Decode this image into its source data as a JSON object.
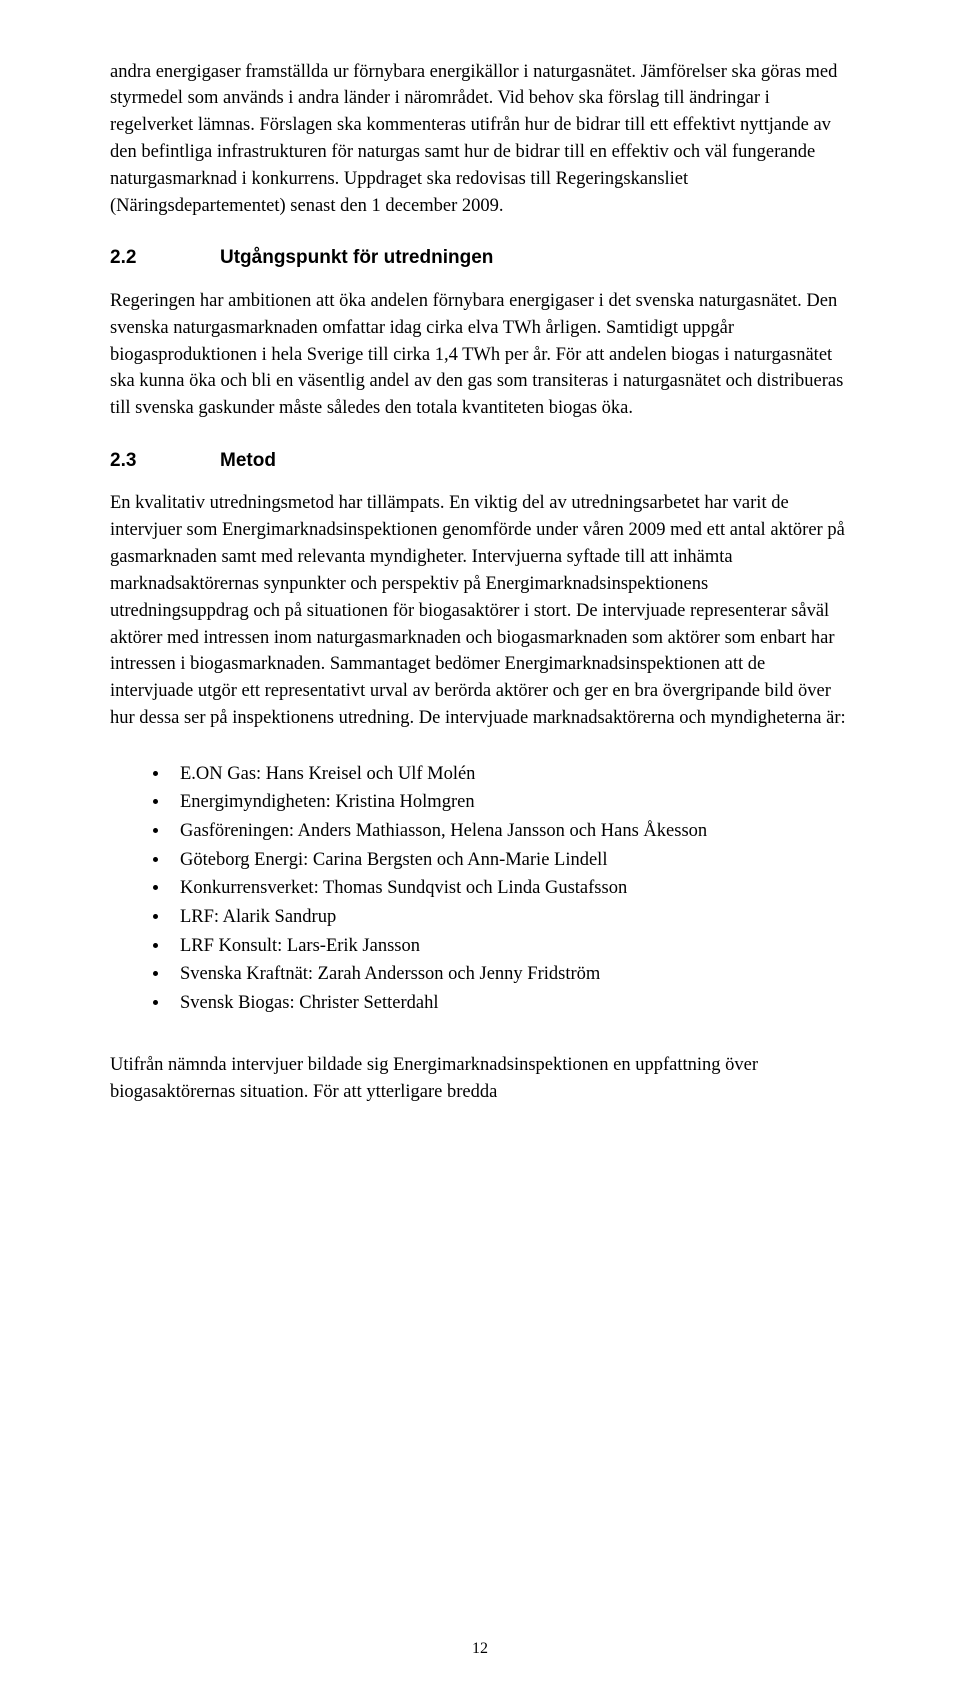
{
  "intro_paragraph": "andra energigaser framställda ur förnybara energikällor i naturgasnätet. Jämförelser ska göras med styrmedel som används i andra länder i närområdet. Vid behov ska förslag till ändringar i regelverket lämnas. Förslagen ska kommenteras utifrån hur de bidrar till ett effektivt nyttjande av den befintliga infrastrukturen för naturgas samt hur de bidrar till en effektiv och väl fungerande naturgasmarknad i konkurrens. Uppdraget ska redovisas till Regeringskansliet (Näringsdepartementet) senast den 1 december 2009.",
  "section_2_2": {
    "number": "2.2",
    "title": "Utgångspunkt för utredningen",
    "text": "Regeringen har ambitionen att öka andelen förnybara energigaser i det svenska naturgasnätet. Den svenska naturgasmarknaden omfattar idag cirka elva TWh årligen. Samtidigt uppgår biogasproduktionen i hela Sverige till cirka 1,4 TWh per år. För att andelen biogas i naturgasnätet ska kunna öka och bli en väsentlig andel av den gas som transiteras i naturgasnätet och distribueras till svenska gaskunder måste således den totala kvantiteten biogas öka."
  },
  "section_2_3": {
    "number": "2.3",
    "title": "Metod",
    "text": "En kvalitativ utredningsmetod har tillämpats. En viktig del av utredningsarbetet har varit de intervjuer som Energimarknadsinspektionen genomförde under våren 2009 med ett antal aktörer på gasmarknaden samt med relevanta myndigheter. Intervjuerna syftade till att inhämta marknadsaktörernas synpunkter och perspektiv på Energimarknadsinspektionens utredningsuppdrag och på situationen för biogasaktörer i stort. De intervjuade representerar såväl aktörer med intressen inom naturgasmarknaden och biogasmarknaden som aktörer som enbart har intressen i biogasmarknaden. Sammantaget bedömer Energimarknadsinspektionen att de intervjuade utgör ett representativt urval av berörda aktörer och ger en bra övergripande bild över hur dessa ser på inspektionens utredning. De intervjuade marknadsaktörerna och myndigheterna är:"
  },
  "bullets": [
    "E.ON Gas: Hans Kreisel och Ulf Molén",
    "Energimyndigheten: Kristina Holmgren",
    "Gasföreningen: Anders Mathiasson, Helena Jansson och Hans Åkesson",
    "Göteborg Energi: Carina Bergsten och Ann-Marie Lindell",
    "Konkurrensverket: Thomas Sundqvist och Linda Gustafsson",
    "LRF: Alarik Sandrup",
    "LRF Konsult: Lars-Erik Jansson",
    "Svenska Kraftnät: Zarah Andersson och Jenny Fridström",
    "Svensk Biogas: Christer Setterdahl"
  ],
  "closing_paragraph": "Utifrån nämnda intervjuer bildade sig Energimarknadsinspektionen en uppfattning över biogasaktörernas situation. För att ytterligare bredda",
  "page_number": "12"
}
